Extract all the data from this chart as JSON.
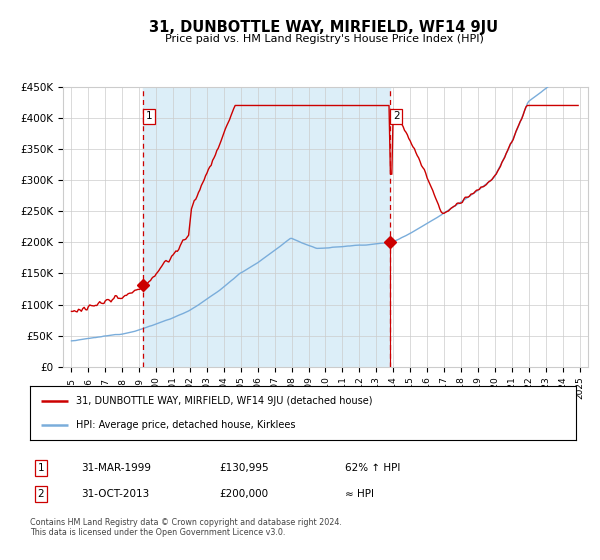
{
  "title": "31, DUNBOTTLE WAY, MIRFIELD, WF14 9JU",
  "subtitle": "Price paid vs. HM Land Registry's House Price Index (HPI)",
  "legend_line1": "31, DUNBOTTLE WAY, MIRFIELD, WF14 9JU (detached house)",
  "legend_line2": "HPI: Average price, detached house, Kirklees",
  "annotation1_label": "1",
  "annotation1_date": "31-MAR-1999",
  "annotation1_price": "£130,995",
  "annotation1_hpi": "62% ↑ HPI",
  "annotation2_label": "2",
  "annotation2_date": "31-OCT-2013",
  "annotation2_price": "£200,000",
  "annotation2_hpi": "≈ HPI",
  "footer": "Contains HM Land Registry data © Crown copyright and database right 2024.\nThis data is licensed under the Open Government Licence v3.0.",
  "hpi_color": "#7aaddb",
  "price_color": "#cc0000",
  "marker_color": "#cc0000",
  "vline_color": "#cc0000",
  "bg_fill_color": "#dceef8",
  "grid_color": "#cccccc",
  "ylim": [
    0,
    450000
  ],
  "yticks": [
    0,
    50000,
    100000,
    150000,
    200000,
    250000,
    300000,
    350000,
    400000,
    450000
  ],
  "ytick_labels": [
    "£0",
    "£50K",
    "£100K",
    "£150K",
    "£200K",
    "£250K",
    "£300K",
    "£350K",
    "£400K",
    "£450K"
  ],
  "point1_x": 1999.25,
  "point1_y": 130995,
  "point2_x": 2013.83,
  "point2_y": 200000,
  "xlim_left": 1994.5,
  "xlim_right": 2025.5
}
